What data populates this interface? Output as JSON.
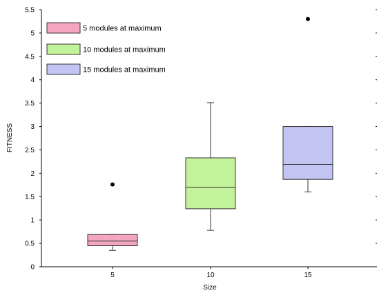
{
  "chart_data": {
    "type": "box",
    "title": "",
    "xlabel": "Size",
    "ylabel": "FITNESS",
    "ylim": [
      0,
      5.5
    ],
    "yticks": [
      "0",
      "0.5",
      "1",
      "1.5",
      "2",
      "2.5",
      "3",
      "3.5",
      "4",
      "4.5",
      "5",
      "5.5"
    ],
    "categories": [
      "5",
      "10",
      "15"
    ],
    "grid": false,
    "legend_position": "top-left",
    "series": [
      {
        "name": "5 modules at maximum",
        "color": "#f4a6c0",
        "whisker_low": 0.35,
        "q1": 0.45,
        "median": 0.55,
        "q3": 0.69,
        "whisker_high": 0.69,
        "outliers": [
          1.76
        ]
      },
      {
        "name": "10 modules at maximum",
        "color": "#c2f29a",
        "whisker_low": 0.78,
        "q1": 1.24,
        "median": 1.7,
        "q3": 2.33,
        "whisker_high": 3.51,
        "outliers": []
      },
      {
        "name": "15 modules at maximum",
        "color": "#c4c4f2",
        "whisker_low": 1.6,
        "q1": 1.87,
        "median": 2.19,
        "q3": 3.0,
        "whisker_high": 3.0,
        "outliers": [
          5.3
        ]
      }
    ]
  }
}
